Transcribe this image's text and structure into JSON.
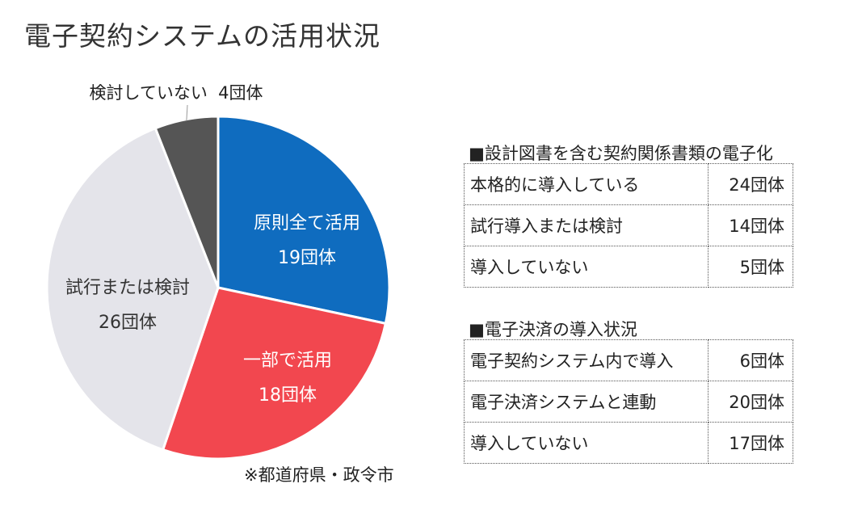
{
  "title": "電子契約システムの活用状況",
  "note": "※都道府県・政令市",
  "chart_data": {
    "type": "pie",
    "slices": [
      {
        "label": "原則全て活用",
        "value_label": "19団体",
        "value": 19,
        "color": "#0f6cbf"
      },
      {
        "label": "一部で活用",
        "value_label": "18団体",
        "value": 18,
        "color": "#f2474f"
      },
      {
        "label": "試行または検討",
        "value_label": "26団体",
        "value": 26,
        "color": "#e4e4ea"
      },
      {
        "label": "検討していない",
        "value_label": "4団体",
        "value": 4,
        "color": "#555555"
      }
    ]
  },
  "table1": {
    "title": "■設計図書を含む契約関係書類の電子化",
    "rows": [
      {
        "label": "本格的に導入している",
        "value": "24団体"
      },
      {
        "label": "試行導入または検討",
        "value": "14団体"
      },
      {
        "label": "導入していない",
        "value": "5団体"
      }
    ]
  },
  "table2": {
    "title": "■電子決済の導入状況",
    "rows": [
      {
        "label": "電子契約システム内で導入",
        "value": "6団体"
      },
      {
        "label": "電子決済システムと連動",
        "value": "20団体"
      },
      {
        "label": "導入していない",
        "value": "17団体"
      }
    ]
  }
}
